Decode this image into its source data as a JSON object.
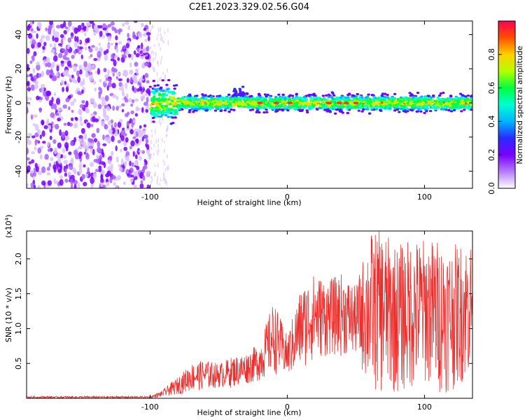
{
  "title": "C2E1.2023.329.02.56.G04",
  "chart_data": [
    {
      "type": "heatmap",
      "xlabel": "Height of straight line (km)",
      "ylabel": "Frequency (Hz)",
      "xlim": [
        -190,
        135
      ],
      "ylim": [
        -50,
        48
      ],
      "xticks": [
        -100,
        0,
        100
      ],
      "yticks": [
        -40,
        -20,
        0,
        20,
        40
      ],
      "colorbar": {
        "label": "Normalized spectral amplitude",
        "range": [
          0,
          1
        ],
        "ticks": [
          "0.0",
          "0.2",
          "0.4",
          "0.6",
          "0.8"
        ],
        "colors": [
          "#ffffff",
          "#b57cff",
          "#7a00ff",
          "#2a2aff",
          "#00b4ff",
          "#00ffd0",
          "#00ff40",
          "#b4ff00",
          "#ffd000",
          "#ff5000",
          "#ff0050"
        ]
      },
      "regions": [
        {
          "name": "noise",
          "x": [
            -190,
            -100
          ],
          "y": [
            -50,
            48
          ],
          "amplitude": 0.2
        },
        {
          "name": "transition",
          "x": [
            -100,
            -87
          ],
          "y": [
            -50,
            48
          ],
          "amplitude": 0.05
        },
        {
          "name": "signal",
          "x": [
            -100,
            135
          ],
          "center_frequency": 0,
          "half_width": 5,
          "amplitude_range": [
            0.3,
            0.9
          ]
        }
      ],
      "grid": false
    },
    {
      "type": "line",
      "xlabel": "Height of straight line (km)",
      "ylabel": "SNR (10 * v/v)",
      "yscale_note": "(x10",
      "yscale_exp": "4",
      "xlim": [
        -190,
        135
      ],
      "ylim": [
        0,
        2.4
      ],
      "xticks": [
        -100,
        0,
        100
      ],
      "yticks": [
        "0.5",
        "1.0",
        "1.5",
        "2.0"
      ],
      "series": [
        {
          "color": "#e8312f",
          "envelope": {
            "x": [
              -190,
              -100,
              -92,
              -80,
              -70,
              -60,
              -50,
              -40,
              -30,
              -20,
              -10,
              0,
              10,
              20,
              30,
              40,
              50,
              60,
              70,
              80,
              90,
              100,
              110,
              120,
              135
            ],
            "min": [
              0.0,
              0.0,
              0.02,
              0.05,
              0.1,
              0.12,
              0.15,
              0.15,
              0.2,
              0.25,
              0.35,
              0.3,
              0.4,
              0.55,
              0.6,
              0.6,
              0.6,
              0.1,
              0.05,
              0.05,
              0.1,
              0.2,
              0.05,
              0.1,
              0.3
            ],
            "max": [
              0.03,
              0.03,
              0.1,
              0.3,
              0.5,
              0.55,
              0.5,
              0.6,
              0.65,
              0.8,
              1.4,
              0.9,
              1.6,
              1.8,
              1.7,
              1.8,
              1.6,
              2.4,
              2.4,
              2.2,
              2.3,
              2.3,
              2.3,
              2.2,
              2.3
            ]
          }
        }
      ],
      "grid": false
    }
  ]
}
